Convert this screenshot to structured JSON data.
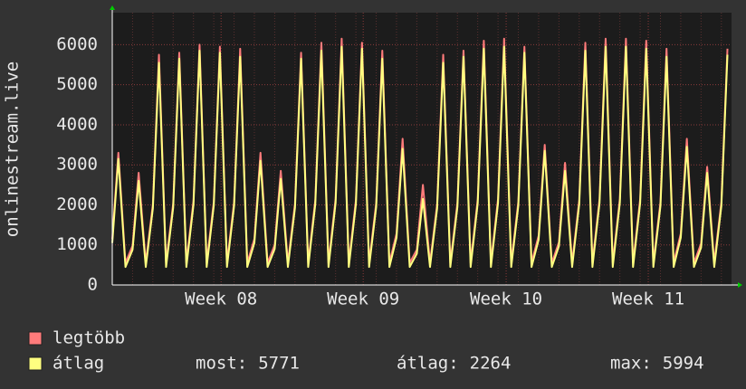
{
  "chart_data": {
    "type": "line",
    "y_label": "onlinestream.live",
    "x": [
      0,
      0.3,
      0.65,
      1,
      1.3,
      1.65,
      2,
      2.3,
      2.65,
      3,
      3.3,
      3.65,
      4,
      4.3,
      4.65,
      5,
      5.3,
      5.65,
      6,
      6.3,
      6.65,
      7,
      7.3,
      7.65,
      8,
      8.3,
      8.65,
      9,
      9.3,
      9.65,
      10,
      10.3,
      10.65,
      11,
      11.3,
      11.65,
      12,
      12.3,
      12.65,
      13,
      13.3,
      13.65,
      14,
      14.3,
      14.65,
      15,
      15.3,
      15.65,
      16,
      16.3,
      16.65,
      17,
      17.3,
      17.65,
      18,
      18.3,
      18.65,
      19,
      19.3,
      19.65,
      20,
      20.3,
      20.65,
      21,
      21.3,
      21.65,
      22,
      22.3,
      22.65,
      23,
      23.3,
      23.65,
      24,
      24.3,
      24.65,
      25,
      25.3,
      25.65,
      26,
      26.3,
      26.65,
      27,
      27.3,
      27.65,
      28,
      28.3,
      28.65,
      29,
      29.3,
      29.65,
      30,
      30.3
    ],
    "series": [
      {
        "name": "legtöbb",
        "color": "#ff7b7b",
        "values": [
          1150,
          3300,
          550,
          980,
          2800,
          550,
          2010,
          5750,
          550,
          2030,
          5800,
          550,
          2100,
          6000,
          550,
          2080,
          5950,
          550,
          2070,
          5900,
          550,
          1150,
          3300,
          550,
          1000,
          2850,
          550,
          2030,
          5800,
          550,
          2120,
          6050,
          550,
          2150,
          6150,
          550,
          2120,
          6050,
          550,
          2050,
          5850,
          550,
          1280,
          3650,
          550,
          880,
          2500,
          550,
          2010,
          5750,
          550,
          2050,
          5850,
          550,
          2140,
          6100,
          550,
          2150,
          6150,
          550,
          2080,
          5950,
          550,
          1230,
          3500,
          550,
          1070,
          3050,
          550,
          2120,
          6050,
          550,
          2150,
          6150,
          550,
          2150,
          6150,
          550,
          2140,
          6100,
          550,
          2070,
          5900,
          550,
          1280,
          3650,
          550,
          1030,
          2950,
          550,
          2070,
          5900
        ]
      },
      {
        "name": "átlag",
        "color": "#ffff80",
        "values": [
          1050,
          3150,
          450,
          880,
          2600,
          450,
          1910,
          5550,
          450,
          1930,
          5650,
          450,
          2000,
          5850,
          450,
          1980,
          5800,
          450,
          1970,
          5700,
          450,
          1050,
          3100,
          450,
          900,
          2650,
          450,
          1930,
          5650,
          450,
          2020,
          5850,
          450,
          2050,
          5950,
          450,
          2020,
          5900,
          450,
          1950,
          5650,
          450,
          1180,
          3400,
          450,
          780,
          2150,
          450,
          1910,
          5550,
          450,
          1950,
          5700,
          450,
          2040,
          5900,
          450,
          2050,
          5950,
          450,
          1980,
          5800,
          450,
          1130,
          3350,
          450,
          970,
          2850,
          450,
          2020,
          5850,
          450,
          2050,
          5950,
          450,
          2050,
          5950,
          450,
          2040,
          5900,
          450,
          1970,
          5700,
          450,
          1180,
          3450,
          450,
          930,
          2800,
          450,
          1970,
          5750
        ]
      }
    ],
    "xlim": [
      0,
      30.5
    ],
    "xticks": [
      {
        "value": 5.36,
        "label": "Week 08"
      },
      {
        "value": 12.36,
        "label": "Week 09"
      },
      {
        "value": 19.4,
        "label": "Week 10"
      },
      {
        "value": 26.4,
        "label": "Week 11"
      }
    ],
    "ylim": [
      0,
      6800
    ],
    "yticks": [
      0,
      1000,
      2000,
      3000,
      4000,
      5000,
      6000
    ],
    "grid": true,
    "stats": [
      {
        "label": "most:",
        "value": 5771
      },
      {
        "label": "átlag:",
        "value": 2264
      },
      {
        "label": "max:",
        "value": 5994
      }
    ]
  }
}
